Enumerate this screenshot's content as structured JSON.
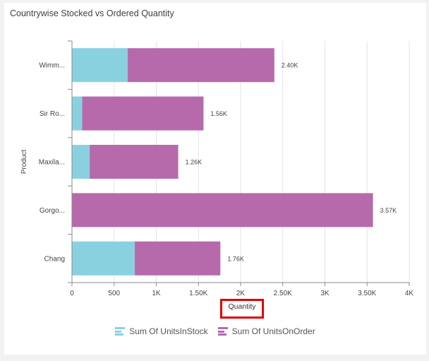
{
  "title": "Countrywise Stocked vs Ordered Quantity",
  "chart_data": {
    "type": "bar",
    "orientation": "horizontal",
    "stacked": true,
    "categories": [
      "Wimm...",
      "Sir Ro...",
      "Maxila...",
      "Gorgo...",
      "Chang"
    ],
    "series": [
      {
        "name": "Sum Of UnitsInStock",
        "color": "#8ad1e0",
        "values": [
          660,
          120,
          210,
          0,
          745
        ]
      },
      {
        "name": "Sum Of UnitsOnOrder",
        "color": "#b66aab",
        "values": [
          1740,
          1440,
          1050,
          3570,
          1015
        ]
      }
    ],
    "totals_labels": [
      "2.40K",
      "1.56K",
      "1.26K",
      "3.57K",
      "1.76K"
    ],
    "xlabel": "Quantity",
    "ylabel": "Product",
    "xlim": [
      0,
      4000
    ],
    "x_ticks": [
      0,
      500,
      1000,
      1500,
      2000,
      2500,
      3000,
      3500,
      4000
    ],
    "x_tick_labels": [
      "0",
      "500",
      "1K",
      "1.50K",
      "2K",
      "2.50K",
      "3K",
      "3.50K",
      "4K"
    ],
    "grid": "vertical",
    "legend_position": "bottom-center"
  }
}
